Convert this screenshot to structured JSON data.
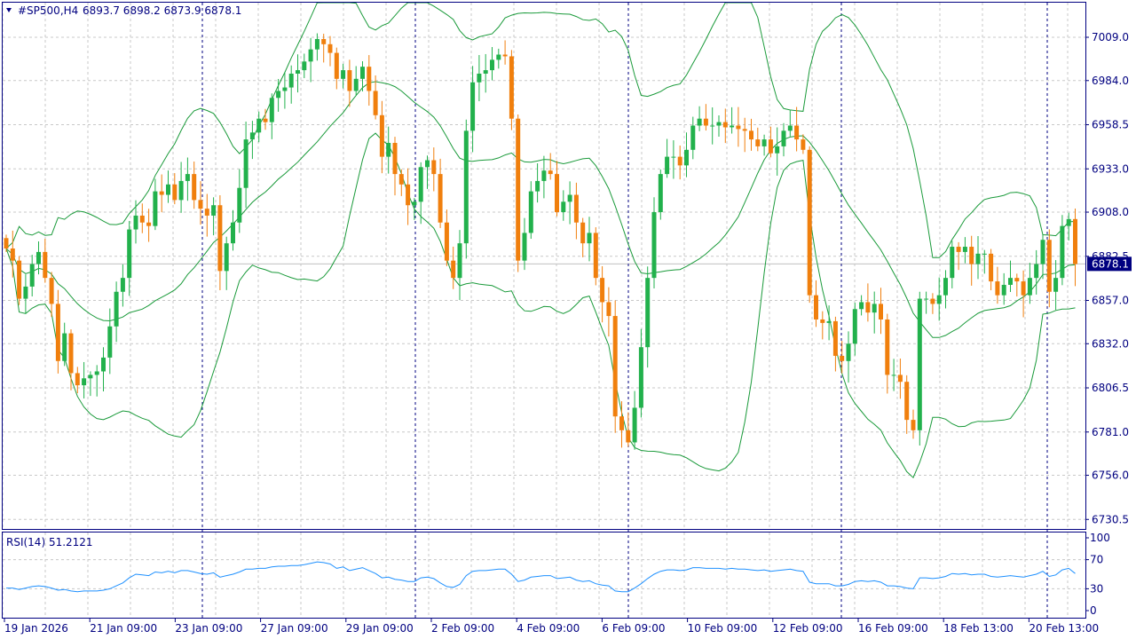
{
  "header": {
    "symbol_label": "#SP500,H4",
    "ohlc_label": "6893.7 6898.2 6873.9 6878.1",
    "menu_icon": "triangle-down-icon"
  },
  "indicator": {
    "label": "RSI(14) 51.2121"
  },
  "price_tag": "6878.1",
  "colors": {
    "frame": "#000080",
    "bull": "#22b14c",
    "bear": "#f07f0d",
    "band": "#1a9a3a",
    "rsi": "#1e90ff",
    "price_tag_bg": "#000080",
    "grid": "#c8c8c8"
  },
  "chart_data": [
    {
      "type": "candlestick",
      "symbol": "#SP500",
      "timeframe": "H4",
      "y_ticks": [
        "7009.0",
        "6984.0",
        "6958.5",
        "6933.0",
        "6908.0",
        "6882.5",
        "6857.0",
        "6832.0",
        "6806.5",
        "6781.0",
        "6756.0",
        "6730.5"
      ],
      "ylim": [
        6725.0,
        7029.0
      ],
      "x_ticks": [
        "19 Jan 2026",
        "21 Jan 09:00",
        "23 Jan 09:00",
        "27 Jan 09:00",
        "29 Jan 09:00",
        "2 Feb 09:00",
        "4 Feb 09:00",
        "6 Feb 09:00",
        "10 Feb 09:00",
        "12 Feb 09:00",
        "16 Feb 09:00",
        "18 Feb 13:00",
        "20 Feb 13:00"
      ],
      "last_price": 6878.1,
      "overlay": "Bollinger Bands",
      "close": [
        6887,
        6880,
        6858,
        6865,
        6878,
        6885,
        6870,
        6855,
        6822,
        6838,
        6815,
        6808,
        6812,
        6814,
        6816,
        6824,
        6842,
        6862,
        6870,
        6898,
        6906,
        6902,
        6900,
        6920,
        6918,
        6924,
        6915,
        6926,
        6930,
        6915,
        6910,
        6906,
        6912,
        6874,
        6890,
        6902,
        6922,
        6950,
        6954,
        6962,
        6960,
        6974,
        6978,
        6980,
        6988,
        6990,
        6995,
        7002,
        7008,
        7005,
        7000,
        6985,
        6990,
        6978,
        6985,
        6992,
        6978,
        6964,
        6940,
        6948,
        6930,
        6924,
        6912,
        6914,
        6934,
        6938,
        6930,
        6902,
        6880,
        6870,
        6890,
        6955,
        6983,
        6988,
        6990,
        6996,
        6999,
        6998,
        6962,
        6880,
        6896,
        6920,
        6926,
        6932,
        6930,
        6908,
        6914,
        6918,
        6902,
        6890,
        6896,
        6870,
        6856,
        6848,
        6790,
        6782,
        6775,
        6795,
        6830,
        6870,
        6908,
        6930,
        6940,
        6940,
        6935,
        6944,
        6958,
        6962,
        6958,
        6958,
        6960,
        6957,
        6958,
        6956,
        6955,
        6950,
        6946,
        6950,
        6942,
        6946,
        6955,
        6958,
        6950,
        6944,
        6860,
        6846,
        6844,
        6845,
        6825,
        6822,
        6832,
        6852,
        6856,
        6850,
        6855,
        6846,
        6814,
        6814,
        6810,
        6788,
        6782,
        6858,
        6858,
        6855,
        6860,
        6870,
        6888,
        6885,
        6888,
        6878,
        6884,
        6884,
        6868,
        6860,
        6866,
        6870,
        6868,
        6860,
        6870,
        6878,
        6892,
        6862,
        6870,
        6900,
        6904,
        6878
      ],
      "rsi": [
        31,
        31,
        29,
        31,
        33,
        34,
        33,
        31,
        28,
        29,
        27,
        26,
        27,
        27,
        27,
        28,
        30,
        34,
        38,
        45,
        50,
        49,
        48,
        53,
        52,
        54,
        52,
        55,
        55,
        53,
        51,
        50,
        52,
        46,
        48,
        50,
        53,
        57,
        57,
        58,
        58,
        60,
        61,
        61,
        62,
        62,
        63,
        65,
        67,
        66,
        64,
        58,
        60,
        55,
        57,
        59,
        55,
        51,
        45,
        46,
        43,
        42,
        40,
        40,
        45,
        46,
        44,
        38,
        33,
        32,
        36,
        48,
        54,
        55,
        55,
        56,
        57,
        57,
        50,
        40,
        42,
        46,
        47,
        48,
        48,
        44,
        45,
        46,
        42,
        40,
        41,
        37,
        35,
        34,
        27,
        26,
        26,
        31,
        37,
        44,
        50,
        54,
        56,
        56,
        55,
        56,
        59,
        59,
        58,
        58,
        58,
        57,
        58,
        57,
        57,
        56,
        55,
        56,
        54,
        55,
        56,
        57,
        55,
        54,
        39,
        37,
        37,
        37,
        34,
        34,
        36,
        40,
        41,
        40,
        41,
        39,
        34,
        34,
        33,
        31,
        30,
        45,
        45,
        44,
        45,
        47,
        51,
        50,
        51,
        49,
        50,
        50,
        47,
        46,
        47,
        48,
        47,
        46,
        48,
        50,
        54,
        47,
        49,
        56,
        58,
        51
      ],
      "rsi_levels": [
        "100",
        "70",
        "30",
        "0"
      ],
      "rsi_ylim": [
        0,
        100
      ]
    }
  ]
}
